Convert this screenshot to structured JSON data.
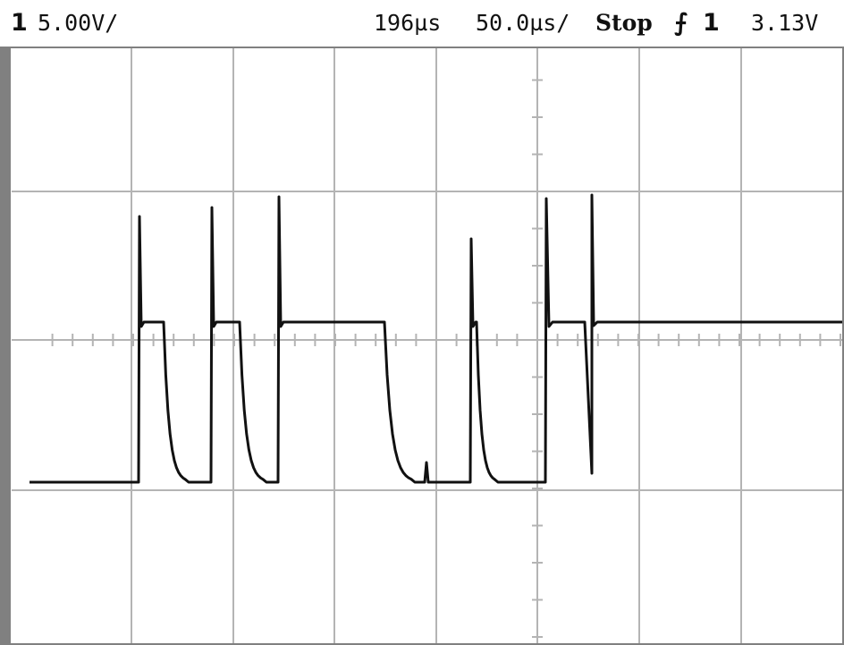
{
  "status": {
    "channel": "1",
    "volts_per_div": "5.00V/",
    "time_position": "196µs",
    "time_per_div": "50.0µs/",
    "run_state": "Stop",
    "trigger_icon": "rising-edge-icon",
    "trigger_source": "1",
    "trigger_level": "3.13V"
  },
  "colors": {
    "background": "#ffffff",
    "frame": "#808080",
    "grid": "#b4b4b4",
    "trace": "#111111"
  },
  "display": {
    "horizontal_divisions": 8,
    "vertical_divisions": 4
  }
}
